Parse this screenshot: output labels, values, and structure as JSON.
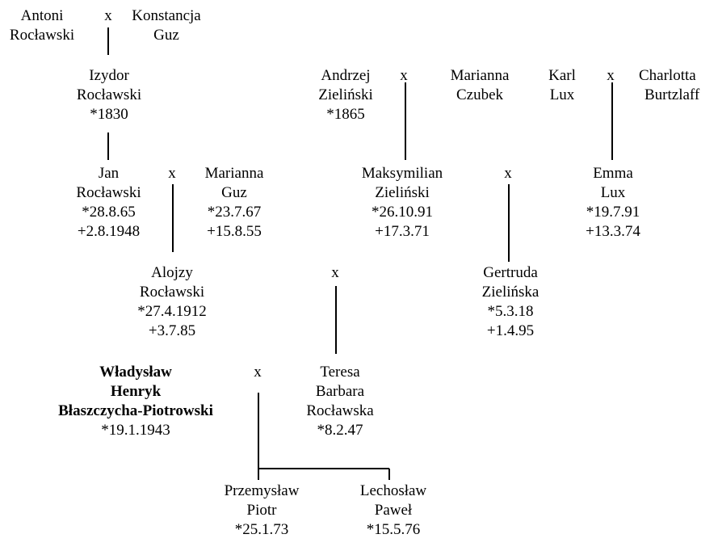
{
  "tree": {
    "persons": {
      "antoni": [
        "Antoni",
        "Rocławski"
      ],
      "konstancja": [
        "Konstancja",
        "Guz"
      ],
      "izydor": [
        "Izydor",
        "Rocławski",
        "*1830"
      ],
      "andrzej": [
        "Andrzej",
        "Zieliński",
        "*1865"
      ],
      "marianna_czubek": [
        "Marianna",
        "Czubek"
      ],
      "karl": [
        "Karl",
        "Lux"
      ],
      "charlotta": [
        "Charlotta",
        "Burtzlaff"
      ],
      "jan": [
        "Jan",
        "Rocławski",
        "*28.8.65",
        "+2.8.1948"
      ],
      "marianna_guz": [
        "Marianna",
        "Guz",
        "*23.7.67",
        "+15.8.55"
      ],
      "maksymilian": [
        "Maksymilian",
        "Zieliński",
        "*26.10.91",
        "+17.3.71"
      ],
      "emma": [
        "Emma",
        "Lux",
        "*19.7.91",
        "+13.3.74"
      ],
      "alojzy": [
        "Alojzy",
        "Rocławski",
        "*27.4.1912",
        "+3.7.85"
      ],
      "gertruda": [
        "Gertruda",
        "Zielińska",
        "*5.3.18",
        "+1.4.95"
      ],
      "wladyslaw": [
        "Władysław",
        "Henryk",
        "Błaszczycha-Piotrowski",
        "*19.1.1943"
      ],
      "teresa": [
        "Teresa",
        "Barbara",
        "Rocławska",
        "*8.2.47"
      ],
      "przemyslaw": [
        "Przemysław",
        "Piotr",
        "*25.1.73"
      ],
      "lechoslaw": [
        "Lechosław",
        "Paweł",
        "*15.5.76"
      ]
    },
    "marriage_symbol": "x"
  }
}
